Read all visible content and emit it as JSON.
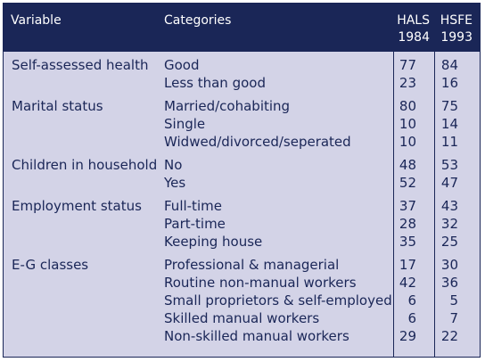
{
  "header": {
    "variable": "Variable",
    "categories": "Categories",
    "col1_line1": "HALS",
    "col1_line2": "1984",
    "col2_line1": "HSFE",
    "col2_line2": "1993"
  },
  "groups": [
    {
      "variable": "Self-assessed health",
      "rows": [
        {
          "category": "Good",
          "hals": "77",
          "hsfe": "84"
        },
        {
          "category": "Less than good",
          "hals": "23",
          "hsfe": "16"
        }
      ]
    },
    {
      "variable": "Marital status",
      "rows": [
        {
          "category": "Married/cohabiting",
          "hals": "80",
          "hsfe": "75"
        },
        {
          "category": "Single",
          "hals": "10",
          "hsfe": "14"
        },
        {
          "category": "Widwed/divorced/seperated",
          "hals": "10",
          "hsfe": "11"
        }
      ]
    },
    {
      "variable": "Children in household",
      "rows": [
        {
          "category": "No",
          "hals": "48",
          "hsfe": "53"
        },
        {
          "category": "Yes",
          "hals": "52",
          "hsfe": "47"
        }
      ]
    },
    {
      "variable": "Employment status",
      "rows": [
        {
          "category": "Full-time",
          "hals": "37",
          "hsfe": "43"
        },
        {
          "category": "Part-time",
          "hals": "28",
          "hsfe": "32"
        },
        {
          "category": "Keeping house",
          "hals": "35",
          "hsfe": "25"
        }
      ]
    },
    {
      "variable": "E-G classes",
      "rows": [
        {
          "category": "Professional & managerial",
          "hals": "17",
          "hsfe": "30"
        },
        {
          "category": "Routine non-manual workers",
          "hals": "42",
          "hsfe": "36"
        },
        {
          "category": "Small proprietors & self-employed",
          "hals": "6",
          "hsfe": "5"
        },
        {
          "category": "Skilled manual workers",
          "hals": "6",
          "hsfe": "7"
        },
        {
          "category": "Non-skilled manual workers",
          "hals": "29",
          "hsfe": "22"
        }
      ]
    }
  ],
  "colors": {
    "header_bg": "#1a2657",
    "body_bg": "#d3d3e7",
    "text": "#1a2657"
  }
}
